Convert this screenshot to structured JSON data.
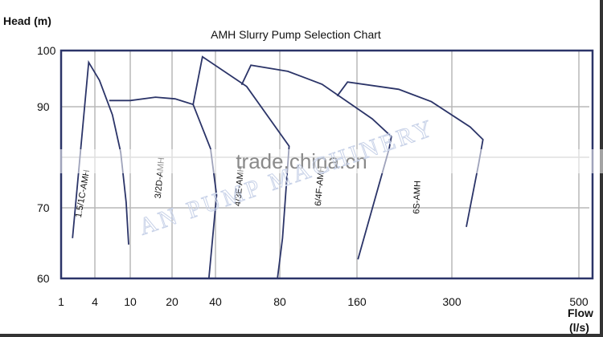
{
  "chart_data": {
    "type": "line",
    "title": "AMH  Slurry Pump Selection Chart",
    "ylabel": "Head (m)",
    "xlabel_line1": "Flow",
    "xlabel_line2": "(l/s)",
    "x_scale": "log (non-uniform tick spacing)",
    "x_ticks": [
      1,
      4,
      10,
      20,
      40,
      80,
      160,
      300,
      500
    ],
    "y_ticks": [
      100,
      90,
      70,
      60
    ],
    "y_gridlines": [
      100,
      90,
      80,
      70,
      60
    ],
    "xlim": [
      1,
      550
    ],
    "ylim": [
      60,
      100
    ],
    "grid": true,
    "line_color": "#2b3468",
    "grid_color": "#b8b8b8",
    "series": [
      {
        "name": "1.5/1C-AMH",
        "points": [
          [
            1.6,
            65.7
          ],
          [
            3.1,
            97.9
          ],
          [
            4.5,
            94.7
          ],
          [
            6.3,
            88.4
          ],
          [
            7.8,
            81
          ],
          [
            9.0,
            71.1
          ],
          [
            9.6,
            64.8
          ]
        ]
      },
      {
        "name": "3/2D-AMH",
        "points": [
          [
            5.8,
            91.1
          ],
          [
            10,
            91.1
          ],
          [
            15.2,
            91.7
          ],
          [
            21,
            91.4
          ],
          [
            28,
            90.4
          ],
          [
            37,
            81.7
          ],
          [
            40.5,
            72.5
          ],
          [
            36,
            60
          ]
        ]
      },
      {
        "name": "4/3E-AMH",
        "points": [
          [
            28,
            90.4
          ],
          [
            32.5,
            98.9
          ],
          [
            56,
            93.6
          ],
          [
            87,
            82.2
          ],
          [
            82,
            65.7
          ],
          [
            78,
            60
          ]
        ]
      },
      {
        "name": "6/4F-AMH",
        "points": [
          [
            53,
            93.9
          ],
          [
            58.6,
            97.4
          ],
          [
            86,
            96.3
          ],
          [
            117,
            94
          ],
          [
            177,
            87.6
          ],
          [
            201,
            84.1
          ],
          [
            198,
            81.7
          ],
          [
            161,
            62.7
          ]
        ]
      },
      {
        "name": "6S-AMH",
        "points": [
          [
            134,
            91.9
          ],
          [
            147,
            94.4
          ],
          [
            211,
            93.1
          ],
          [
            262,
            90.9
          ],
          [
            323,
            86
          ],
          [
            340,
            83.5
          ],
          [
            334,
            78.6
          ],
          [
            318,
            67.3
          ]
        ]
      }
    ]
  },
  "watermarks": {
    "site": "trade.china.cn",
    "company": "AN PUMP MACHINERY"
  }
}
